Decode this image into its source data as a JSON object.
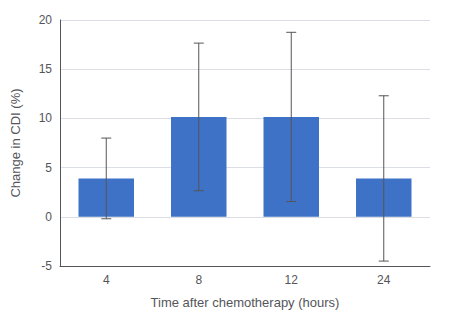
{
  "chart_data": {
    "type": "bar",
    "categories": [
      "4",
      "8",
      "12",
      "24"
    ],
    "values": [
      3.9,
      10.15,
      10.15,
      3.9
    ],
    "errors": [
      4.1,
      7.5,
      8.6,
      8.4
    ],
    "color": "#3D72C6",
    "xlabel": "Time after chemotherapy (hours)",
    "ylabel": "Change in CDI (%)",
    "ylim": [
      -5,
      20
    ],
    "yticks": [
      -5,
      0,
      5,
      10,
      15,
      20
    ],
    "grid": true
  }
}
